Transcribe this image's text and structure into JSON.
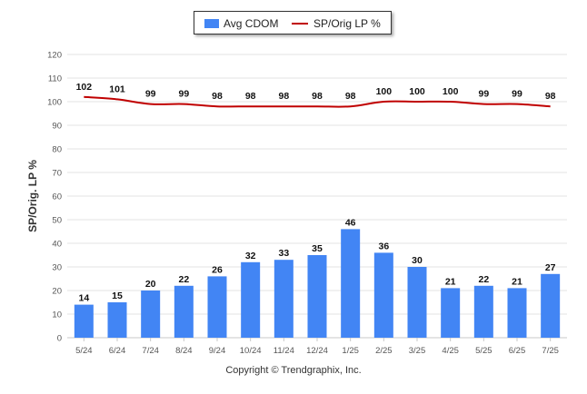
{
  "footer": {
    "copyright": "Copyright © Trendgraphix, Inc."
  },
  "colors": {
    "bar": "#4285f4",
    "line": "#c00000",
    "grid": "#e3e3e3",
    "axis_text": "#555555"
  },
  "chart_data": {
    "type": "bar",
    "categories": [
      "5/24",
      "6/24",
      "7/24",
      "8/24",
      "9/24",
      "10/24",
      "11/24",
      "12/24",
      "1/25",
      "2/25",
      "3/25",
      "4/25",
      "5/25",
      "6/25",
      "7/25"
    ],
    "series": [
      {
        "name": "Avg CDOM",
        "type": "bar",
        "values": [
          14,
          15,
          20,
          22,
          26,
          32,
          33,
          35,
          46,
          36,
          30,
          21,
          22,
          21,
          27
        ]
      },
      {
        "name": "SP/Orig LP %",
        "type": "line",
        "values": [
          102,
          101,
          99,
          99,
          98,
          98,
          98,
          98,
          98,
          100,
          100,
          100,
          99,
          99,
          98
        ]
      }
    ],
    "ylabel": "SP/Orig. LP %",
    "ylim": [
      0,
      120
    ],
    "yticks": [
      0,
      10,
      20,
      30,
      40,
      50,
      60,
      70,
      80,
      90,
      100,
      110,
      120
    ],
    "grid": true,
    "legend_position": "top-center"
  }
}
